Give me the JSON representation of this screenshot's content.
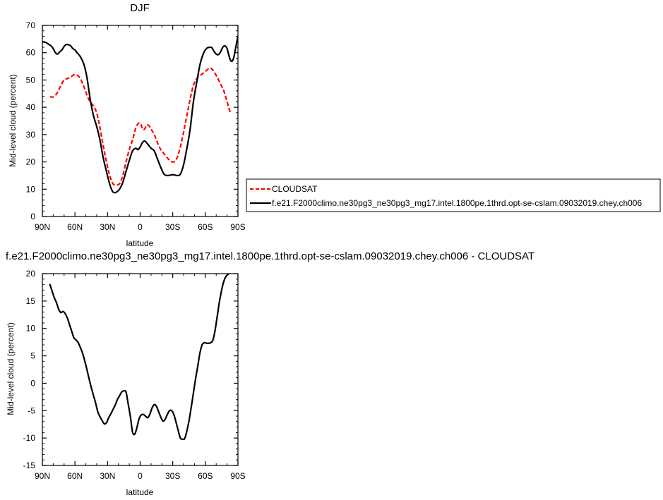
{
  "chart_data": [
    {
      "type": "line",
      "title": "DJF",
      "xlabel": "latitude",
      "ylabel": "Mid-level cloud (percent)",
      "xlim": [
        90,
        -90
      ],
      "ylim": [
        0,
        70
      ],
      "x_ticks": [
        90,
        60,
        30,
        0,
        -30,
        -60,
        -90
      ],
      "x_tick_labels": [
        "90N",
        "60N",
        "30N",
        "0",
        "30S",
        "60S",
        "90S"
      ],
      "y_ticks": [
        0,
        10,
        20,
        30,
        40,
        50,
        60,
        70
      ],
      "y_tick_labels": [
        "0",
        "10",
        "20",
        "30",
        "40",
        "50",
        "60",
        "70"
      ],
      "grid": false,
      "legend_position": "right, outside plot",
      "series": [
        {
          "name": "CLOUDSAT",
          "color": "#ff0000",
          "style": "dashed",
          "x": [
            83,
            81,
            79,
            76,
            73,
            70,
            67,
            64,
            62,
            60,
            58,
            55,
            52,
            49,
            46,
            43,
            40,
            37,
            34,
            31,
            28,
            25,
            22,
            19,
            16,
            13,
            10,
            7,
            4,
            1,
            -1,
            -2,
            -4,
            -6,
            -8,
            -10,
            -13,
            -16,
            -19,
            -22,
            -25,
            -28,
            -31,
            -34,
            -37,
            -40,
            -43,
            -46,
            -49,
            -52,
            -55,
            -58,
            -61,
            -64,
            -66,
            -68,
            -71,
            -74,
            -77,
            -80,
            -83
          ],
          "y": [
            44,
            43.7,
            44,
            45.5,
            48,
            50,
            50.5,
            51,
            51.7,
            52,
            51.8,
            50.5,
            47.8,
            44.5,
            42,
            40.5,
            38,
            32.5,
            26,
            20,
            15,
            12,
            11.6,
            12,
            15,
            20,
            24.5,
            28,
            32.5,
            34.3,
            33.5,
            32,
            32,
            33.5,
            33.3,
            32,
            30,
            27,
            24.5,
            23,
            21.5,
            20.3,
            20,
            21.5,
            25.5,
            31,
            37,
            43,
            48,
            50.5,
            51.5,
            52.5,
            53.5,
            54.4,
            54,
            53,
            51,
            48.5,
            46,
            42,
            38
          ]
        },
        {
          "name": "f.e21.F2000climo.ne30pg3_ne30pg3_mg17.intel.1800pe.1thrd.opt-se-cslam.09032019.chey.ch006",
          "color": "#000000",
          "style": "solid",
          "x": [
            90,
            87,
            84,
            82,
            80,
            78,
            76,
            74,
            72,
            70,
            68,
            66,
            64,
            62,
            60,
            58,
            55,
            52,
            49,
            46,
            43,
            40,
            37,
            34,
            31,
            28,
            25,
            22,
            19,
            16,
            13,
            10,
            7,
            4,
            2,
            0,
            -2,
            -4,
            -6,
            -8,
            -10,
            -13,
            -16,
            -19,
            -22,
            -25,
            -28,
            -31,
            -34,
            -37,
            -40,
            -43,
            -46,
            -49,
            -52,
            -55,
            -58,
            -61,
            -64,
            -66,
            -68,
            -70,
            -72,
            -74,
            -76,
            -78,
            -80,
            -82,
            -84,
            -86,
            -88,
            -90
          ],
          "y": [
            64,
            63.8,
            63,
            62.5,
            61.5,
            60,
            59.5,
            60.3,
            61,
            62.3,
            63,
            62.9,
            62.5,
            61.5,
            61,
            60,
            58.5,
            56,
            51,
            43,
            37,
            33,
            28,
            21.5,
            16.5,
            11.8,
            9,
            8.9,
            10,
            12.5,
            16.5,
            20.5,
            24,
            25,
            24.5,
            25.5,
            27,
            27.7,
            27,
            26,
            25,
            24,
            21,
            18,
            15.5,
            15,
            15.2,
            15.3,
            15,
            15.5,
            19,
            25,
            32,
            42,
            49,
            55.5,
            59.5,
            61.5,
            62,
            61.8,
            60.5,
            59.5,
            59.3,
            60.3,
            62,
            62.5,
            61.5,
            58.5,
            56.8,
            58,
            62,
            66
          ]
        }
      ]
    },
    {
      "type": "line",
      "title": "f.e21.F2000climo.ne30pg3_ne30pg3_mg17.intel.1800pe.1thrd.opt-se-cslam.09032019.chey.ch006 - CLOUDSAT",
      "xlabel": "latitude",
      "ylabel": "Mid-level cloud (percent)",
      "xlim": [
        90,
        -90
      ],
      "ylim": [
        -15,
        20
      ],
      "x_ticks": [
        90,
        60,
        30,
        0,
        -30,
        -60,
        -90
      ],
      "x_tick_labels": [
        "90N",
        "60N",
        "30N",
        "0",
        "30S",
        "60S",
        "90S"
      ],
      "y_ticks": [
        -15,
        -10,
        -5,
        0,
        5,
        10,
        15,
        20
      ],
      "y_tick_labels": [
        "-15",
        "-10",
        "-5",
        "0",
        "5",
        "10",
        "15",
        "20"
      ],
      "grid": false,
      "series": [
        {
          "color": "#000000",
          "style": "solid",
          "x": [
            83,
            81,
            79,
            77,
            75,
            73,
            71,
            69,
            67,
            65,
            63,
            61,
            59,
            57,
            55,
            53,
            51,
            49,
            47,
            45,
            43,
            41,
            39,
            37,
            35,
            33,
            31,
            29,
            27,
            25,
            23,
            21,
            19,
            17,
            15,
            13,
            11,
            9,
            7,
            5,
            3,
            1,
            -1,
            -3,
            -5,
            -7,
            -9,
            -11,
            -13,
            -15,
            -17,
            -19,
            -21,
            -23,
            -25,
            -27,
            -29,
            -31,
            -33,
            -35,
            -37,
            -39,
            -41,
            -43,
            -45,
            -47,
            -49,
            -51,
            -53,
            -55,
            -57,
            -59,
            -61,
            -63,
            -65,
            -67,
            -69,
            -71,
            -73,
            -75,
            -77,
            -79,
            -81,
            -83,
            -85,
            -87
          ],
          "y": [
            18,
            16.8,
            15.6,
            14.7,
            13.5,
            12.9,
            13.1,
            12.7,
            11.9,
            10.7,
            9.5,
            8.3,
            7.9,
            7.4,
            6.5,
            5.5,
            4.1,
            2.5,
            0.8,
            -0.8,
            -2.2,
            -3.6,
            -5.2,
            -6.1,
            -6.8,
            -7.4,
            -7.2,
            -6.3,
            -5.6,
            -4.8,
            -4.0,
            -3.0,
            -2.3,
            -1.6,
            -1.4,
            -1.6,
            -3.8,
            -6.1,
            -8.9,
            -9.3,
            -8.1,
            -6.5,
            -5.8,
            -5.7,
            -6.0,
            -6.3,
            -5.6,
            -4.5,
            -3.9,
            -4.2,
            -5.2,
            -6.2,
            -6.9,
            -6.6,
            -5.7,
            -5.0,
            -5.0,
            -5.7,
            -7.1,
            -8.6,
            -10.0,
            -10.2,
            -10.1,
            -8.7,
            -6.8,
            -4.4,
            -1.8,
            0.8,
            3.1,
            5.5,
            7.0,
            7.4,
            7.3,
            7.3,
            7.4,
            7.9,
            9.7,
            12.3,
            14.9,
            17.0,
            18.6,
            19.5,
            19.9,
            20.1,
            20.1,
            20.1
          ]
        }
      ]
    }
  ]
}
